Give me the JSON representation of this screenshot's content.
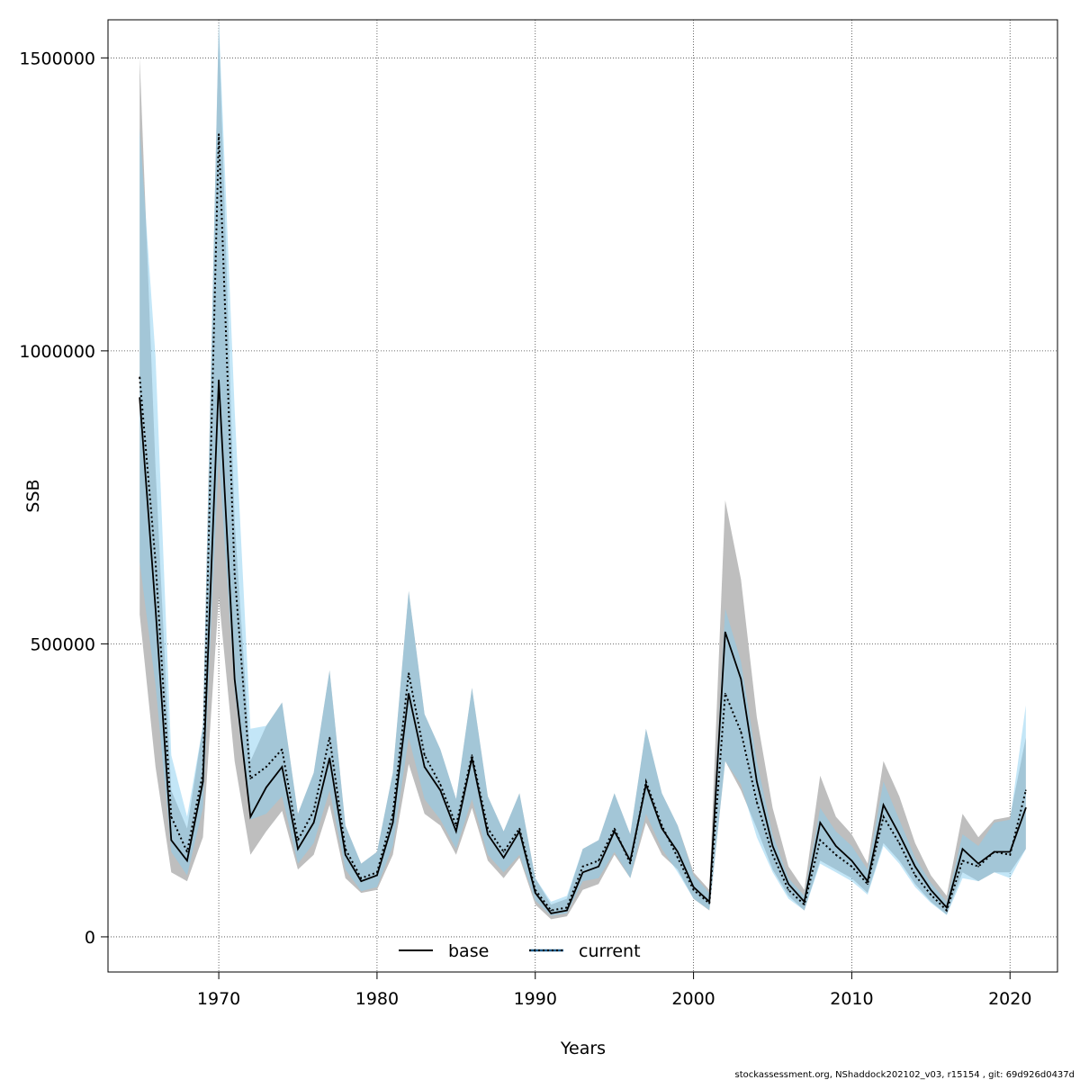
{
  "chart_data": {
    "type": "line",
    "xlabel": "Years",
    "ylabel": "SSB",
    "xlim": [
      1963,
      2023
    ],
    "ylim": [
      -60000,
      1565000
    ],
    "x_ticks": [
      1970,
      1980,
      1990,
      2000,
      2010,
      2020
    ],
    "y_ticks": [
      0,
      500000,
      1000000,
      1500000
    ],
    "x_tick_labels": [
      "1970",
      "1980",
      "1990",
      "2000",
      "2010",
      "2020"
    ],
    "y_tick_labels": [
      "0",
      "500000",
      "1000000",
      "1500000"
    ],
    "grid": true,
    "legend_position": "bottom-center",
    "x": [
      1965,
      1966,
      1967,
      1968,
      1969,
      1970,
      1971,
      1972,
      1973,
      1974,
      1975,
      1976,
      1977,
      1978,
      1979,
      1980,
      1981,
      1982,
      1983,
      1984,
      1985,
      1986,
      1987,
      1988,
      1989,
      1990,
      1991,
      1992,
      1993,
      1994,
      1995,
      1996,
      1997,
      1998,
      1999,
      2000,
      2001,
      2002,
      2003,
      2004,
      2005,
      2006,
      2007,
      2008,
      2009,
      2010,
      2011,
      2012,
      2013,
      2014,
      2015,
      2016,
      2017,
      2018,
      2019,
      2020,
      2021
    ],
    "series": [
      {
        "name": "base",
        "color": "#000000",
        "band_color": "#bebebe",
        "line_style": "solid",
        "values": [
          920000,
          560000,
          165000,
          130000,
          265000,
          950000,
          440000,
          205000,
          255000,
          290000,
          150000,
          195000,
          305000,
          140000,
          95000,
          105000,
          195000,
          415000,
          290000,
          250000,
          180000,
          305000,
          175000,
          135000,
          180000,
          75000,
          40000,
          45000,
          110000,
          120000,
          180000,
          130000,
          260000,
          185000,
          145000,
          85000,
          60000,
          520000,
          440000,
          265000,
          155000,
          90000,
          60000,
          195000,
          155000,
          130000,
          95000,
          225000,
          175000,
          120000,
          80000,
          50000,
          150000,
          125000,
          145000,
          145000,
          220000
        ],
        "lower": [
          550000,
          290000,
          110000,
          95000,
          170000,
          580000,
          300000,
          140000,
          180000,
          215000,
          115000,
          140000,
          225000,
          100000,
          75000,
          80000,
          140000,
          295000,
          210000,
          190000,
          140000,
          220000,
          130000,
          100000,
          135000,
          55000,
          30000,
          35000,
          80000,
          90000,
          140000,
          100000,
          195000,
          140000,
          115000,
          65000,
          45000,
          300000,
          250000,
          185000,
          115000,
          70000,
          45000,
          130000,
          115000,
          100000,
          75000,
          160000,
          130000,
          90000,
          60000,
          38000,
          110000,
          95000,
          110000,
          110000,
          150000
        ],
        "upper": [
          1500000,
          800000,
          250000,
          185000,
          360000,
          1560000,
          710000,
          300000,
          360000,
          400000,
          210000,
          280000,
          455000,
          190000,
          125000,
          145000,
          280000,
          590000,
          380000,
          320000,
          235000,
          425000,
          240000,
          180000,
          245000,
          100000,
          55000,
          65000,
          150000,
          165000,
          245000,
          175000,
          355000,
          245000,
          190000,
          110000,
          80000,
          745000,
          610000,
          375000,
          220000,
          120000,
          80000,
          275000,
          205000,
          175000,
          125000,
          300000,
          240000,
          160000,
          105000,
          70000,
          210000,
          170000,
          200000,
          205000,
          340000
        ]
      },
      {
        "name": "current",
        "color": "#1f5d8c",
        "band_color": "#87cef0",
        "line_style": "dotted",
        "values": [
          955000,
          640000,
          205000,
          145000,
          280000,
          1370000,
          620000,
          270000,
          290000,
          320000,
          165000,
          215000,
          340000,
          150000,
          100000,
          110000,
          210000,
          450000,
          310000,
          260000,
          190000,
          310000,
          185000,
          145000,
          185000,
          80000,
          45000,
          50000,
          120000,
          130000,
          185000,
          125000,
          265000,
          190000,
          135000,
          80000,
          57000,
          415000,
          350000,
          230000,
          140000,
          80000,
          55000,
          165000,
          140000,
          120000,
          90000,
          205000,
          160000,
          105000,
          72000,
          45000,
          130000,
          120000,
          145000,
          140000,
          250000
        ],
        "lower": [
          640000,
          430000,
          145000,
          105000,
          220000,
          820000,
          420000,
          200000,
          210000,
          240000,
          125000,
          160000,
          250000,
          115000,
          78000,
          85000,
          155000,
          340000,
          235000,
          200000,
          150000,
          235000,
          140000,
          110000,
          140000,
          62000,
          36000,
          40000,
          95000,
          100000,
          145000,
          100000,
          210000,
          150000,
          110000,
          65000,
          46000,
          300000,
          260000,
          170000,
          110000,
          65000,
          45000,
          125000,
          110000,
          95000,
          72000,
          155000,
          125000,
          85000,
          58000,
          37000,
          100000,
          95000,
          110000,
          100000,
          150000
        ],
        "upper": [
          1380000,
          990000,
          310000,
          205000,
          360000,
          1565000,
          900000,
          355000,
          360000,
          400000,
          210000,
          280000,
          455000,
          190000,
          125000,
          145000,
          280000,
          590000,
          380000,
          320000,
          235000,
          425000,
          240000,
          180000,
          245000,
          100000,
          60000,
          70000,
          150000,
          165000,
          245000,
          175000,
          355000,
          245000,
          190000,
          105000,
          75000,
          560000,
          470000,
          300000,
          175000,
          100000,
          70000,
          220000,
          180000,
          155000,
          115000,
          265000,
          200000,
          135000,
          92000,
          60000,
          175000,
          155000,
          195000,
          200000,
          395000
        ]
      }
    ]
  },
  "footer": {
    "text": "stockassessment.org, NShaddock202102_v03, r15154 , git: 69d926d0437d"
  }
}
